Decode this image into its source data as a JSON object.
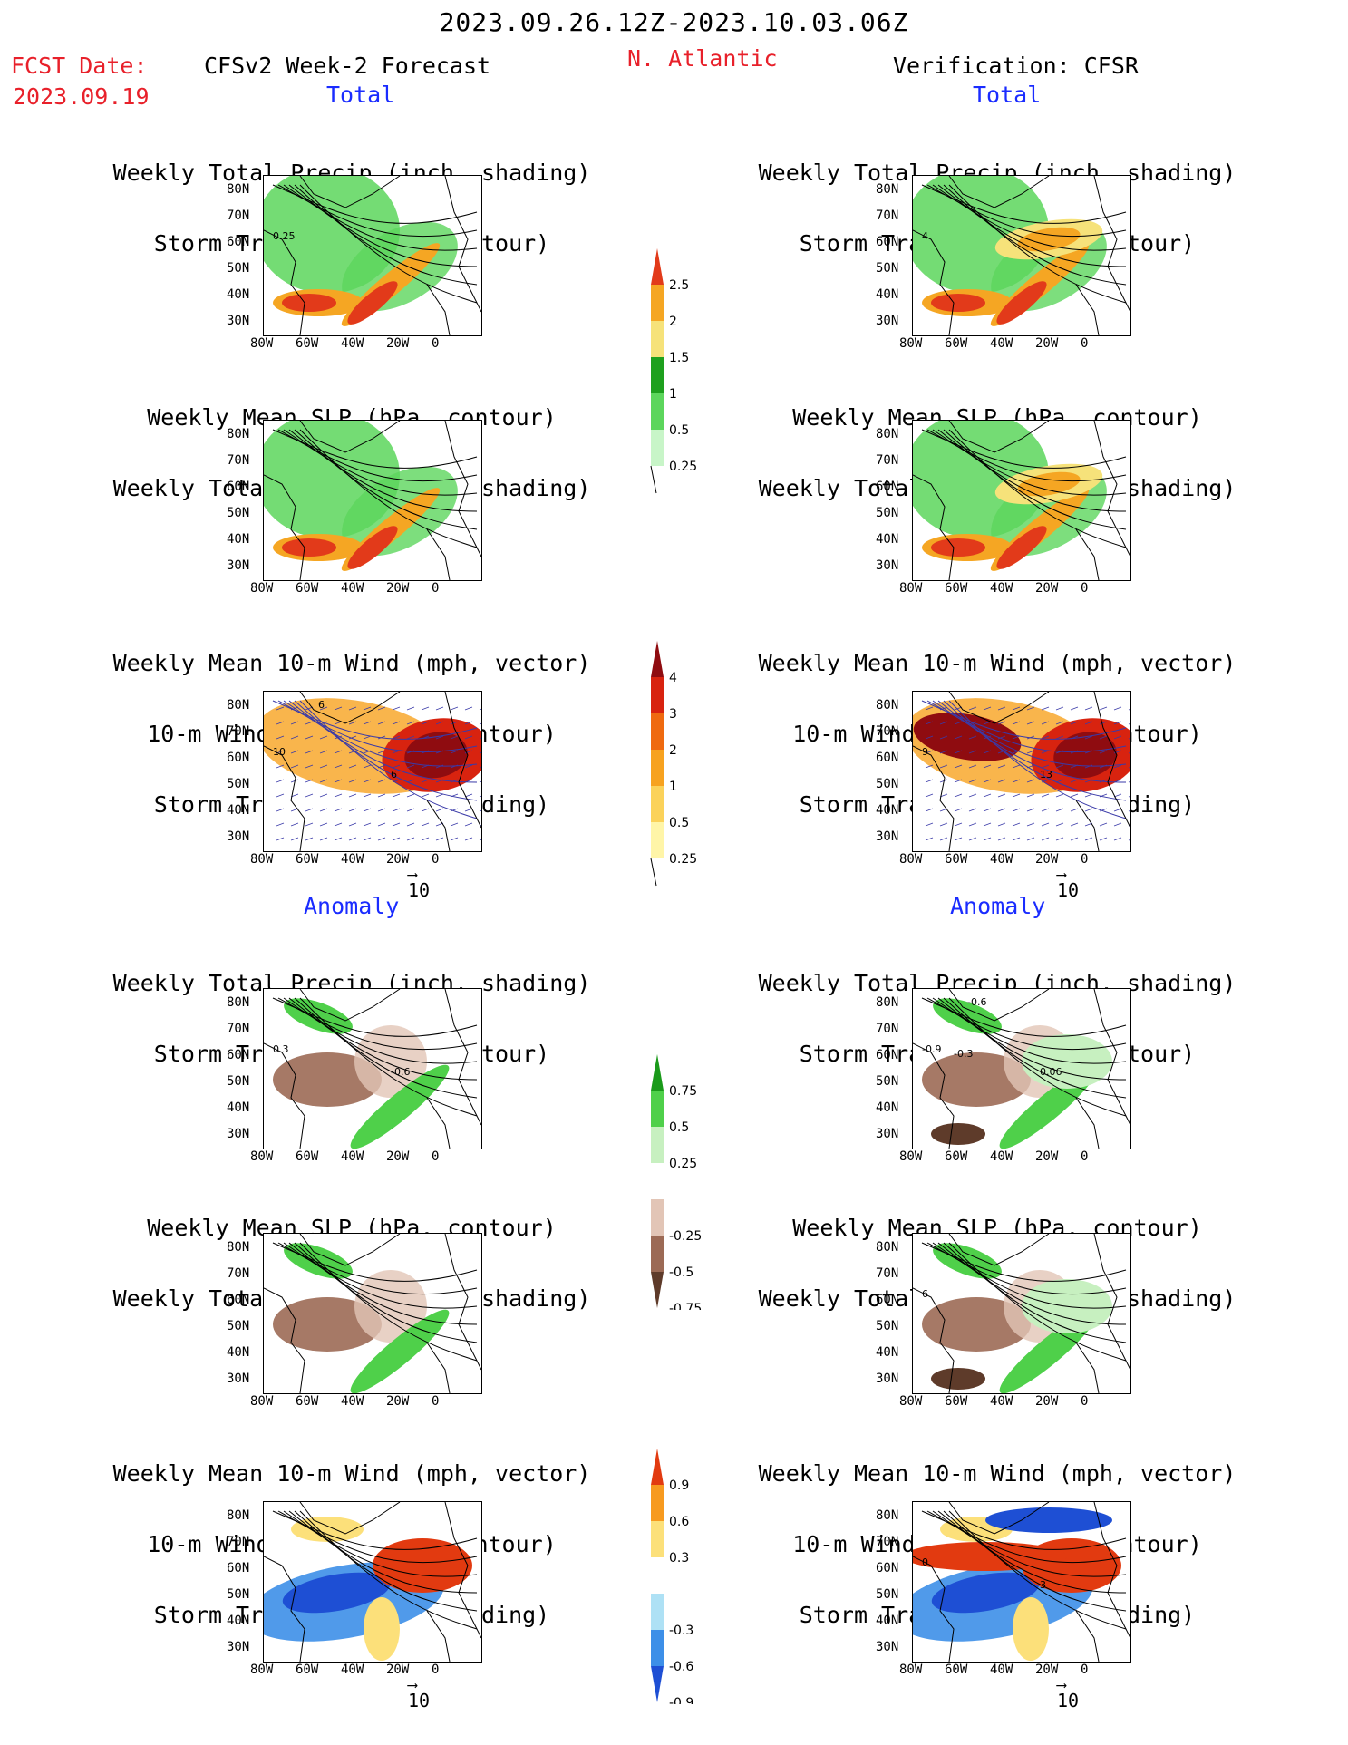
{
  "header": {
    "date_range": "2023.09.26.12Z-2023.10.03.06Z",
    "fcst_label": "FCST Date:",
    "fcst_date": "2023.09.19",
    "model": "CFSv2 Week-2 Forecast",
    "region": "N. Atlantic",
    "verification": "Verification: CFSR"
  },
  "sections": {
    "total": "Total",
    "anomaly": "Anomaly"
  },
  "panel_titles": {
    "precip_storm": [
      "Weekly Total Precip (inch, shading)",
      "Storm Track Density (contour)"
    ],
    "slp_precip": [
      "Weekly Mean SLP (hPa, contour)",
      "Weekly Total Precip (inch, shading)"
    ],
    "wind_storm": [
      "Weekly Mean 10-m Wind (mph, vector)",
      "10-m Wind Speed (mph, contour)",
      "Storm Track Density (shading)"
    ]
  },
  "axes": {
    "lat": [
      "80N",
      "70N",
      "60N",
      "50N",
      "40N",
      "30N"
    ],
    "lon": [
      "80W",
      "60W",
      "40W",
      "20W",
      "0"
    ]
  },
  "vector_ref": "10",
  "colorbars": {
    "precip_total": [
      "2.5",
      "2",
      "1.5",
      "1",
      "0.5",
      "0.25"
    ],
    "storm_total": [
      "4",
      "3",
      "2",
      "1",
      "0.5",
      "0.25"
    ],
    "precip_anom": [
      "0.75",
      "0.5",
      "0.25",
      "-0.25",
      "-0.5",
      "-0.75"
    ],
    "storm_anom": [
      "0.9",
      "0.6",
      "0.3",
      "-0.3",
      "-0.6",
      "-0.9"
    ]
  },
  "colors": {
    "precip_scale": [
      "#c8f5c8",
      "#5cd65c",
      "#1ea01e",
      "#f6e27a",
      "#f5a623",
      "#e23a1a"
    ],
    "storm_scale": [
      "#fff5a8",
      "#fbd25a",
      "#f7a21f",
      "#ef6a10",
      "#d8230f",
      "#8f0c10"
    ],
    "anom_precip": [
      "#5e3b2a",
      "#9c6a55",
      "#e2c5b6",
      "#ffffff",
      "#c7f0c0",
      "#4fd04a",
      "#1a9a1a"
    ],
    "anom_storm": [
      "#1e4fd4",
      "#3d8fe8",
      "#aee1f5",
      "#ffffff",
      "#fce07a",
      "#f79a1f",
      "#e23a10"
    ]
  },
  "contour_labels": {
    "fc_total_1": "0.25",
    "obs_total_1": "4",
    "fc_total_3a": "10",
    "fc_total_3b": "6",
    "fc_total_3c": "6",
    "obs_total_3a": "9",
    "obs_total_3b": "13",
    "fc_anom_1a": "0.3",
    "fc_anom_1b": "-0.6",
    "obs_anom_1a": "-0.9",
    "obs_anom_1b": "0.06",
    "obs_anom_1c": "-0.6",
    "obs_anom_1d": "-0.3",
    "obs_anom_2": "6",
    "obs_anom_3a": "0",
    "obs_anom_3b": "3"
  }
}
